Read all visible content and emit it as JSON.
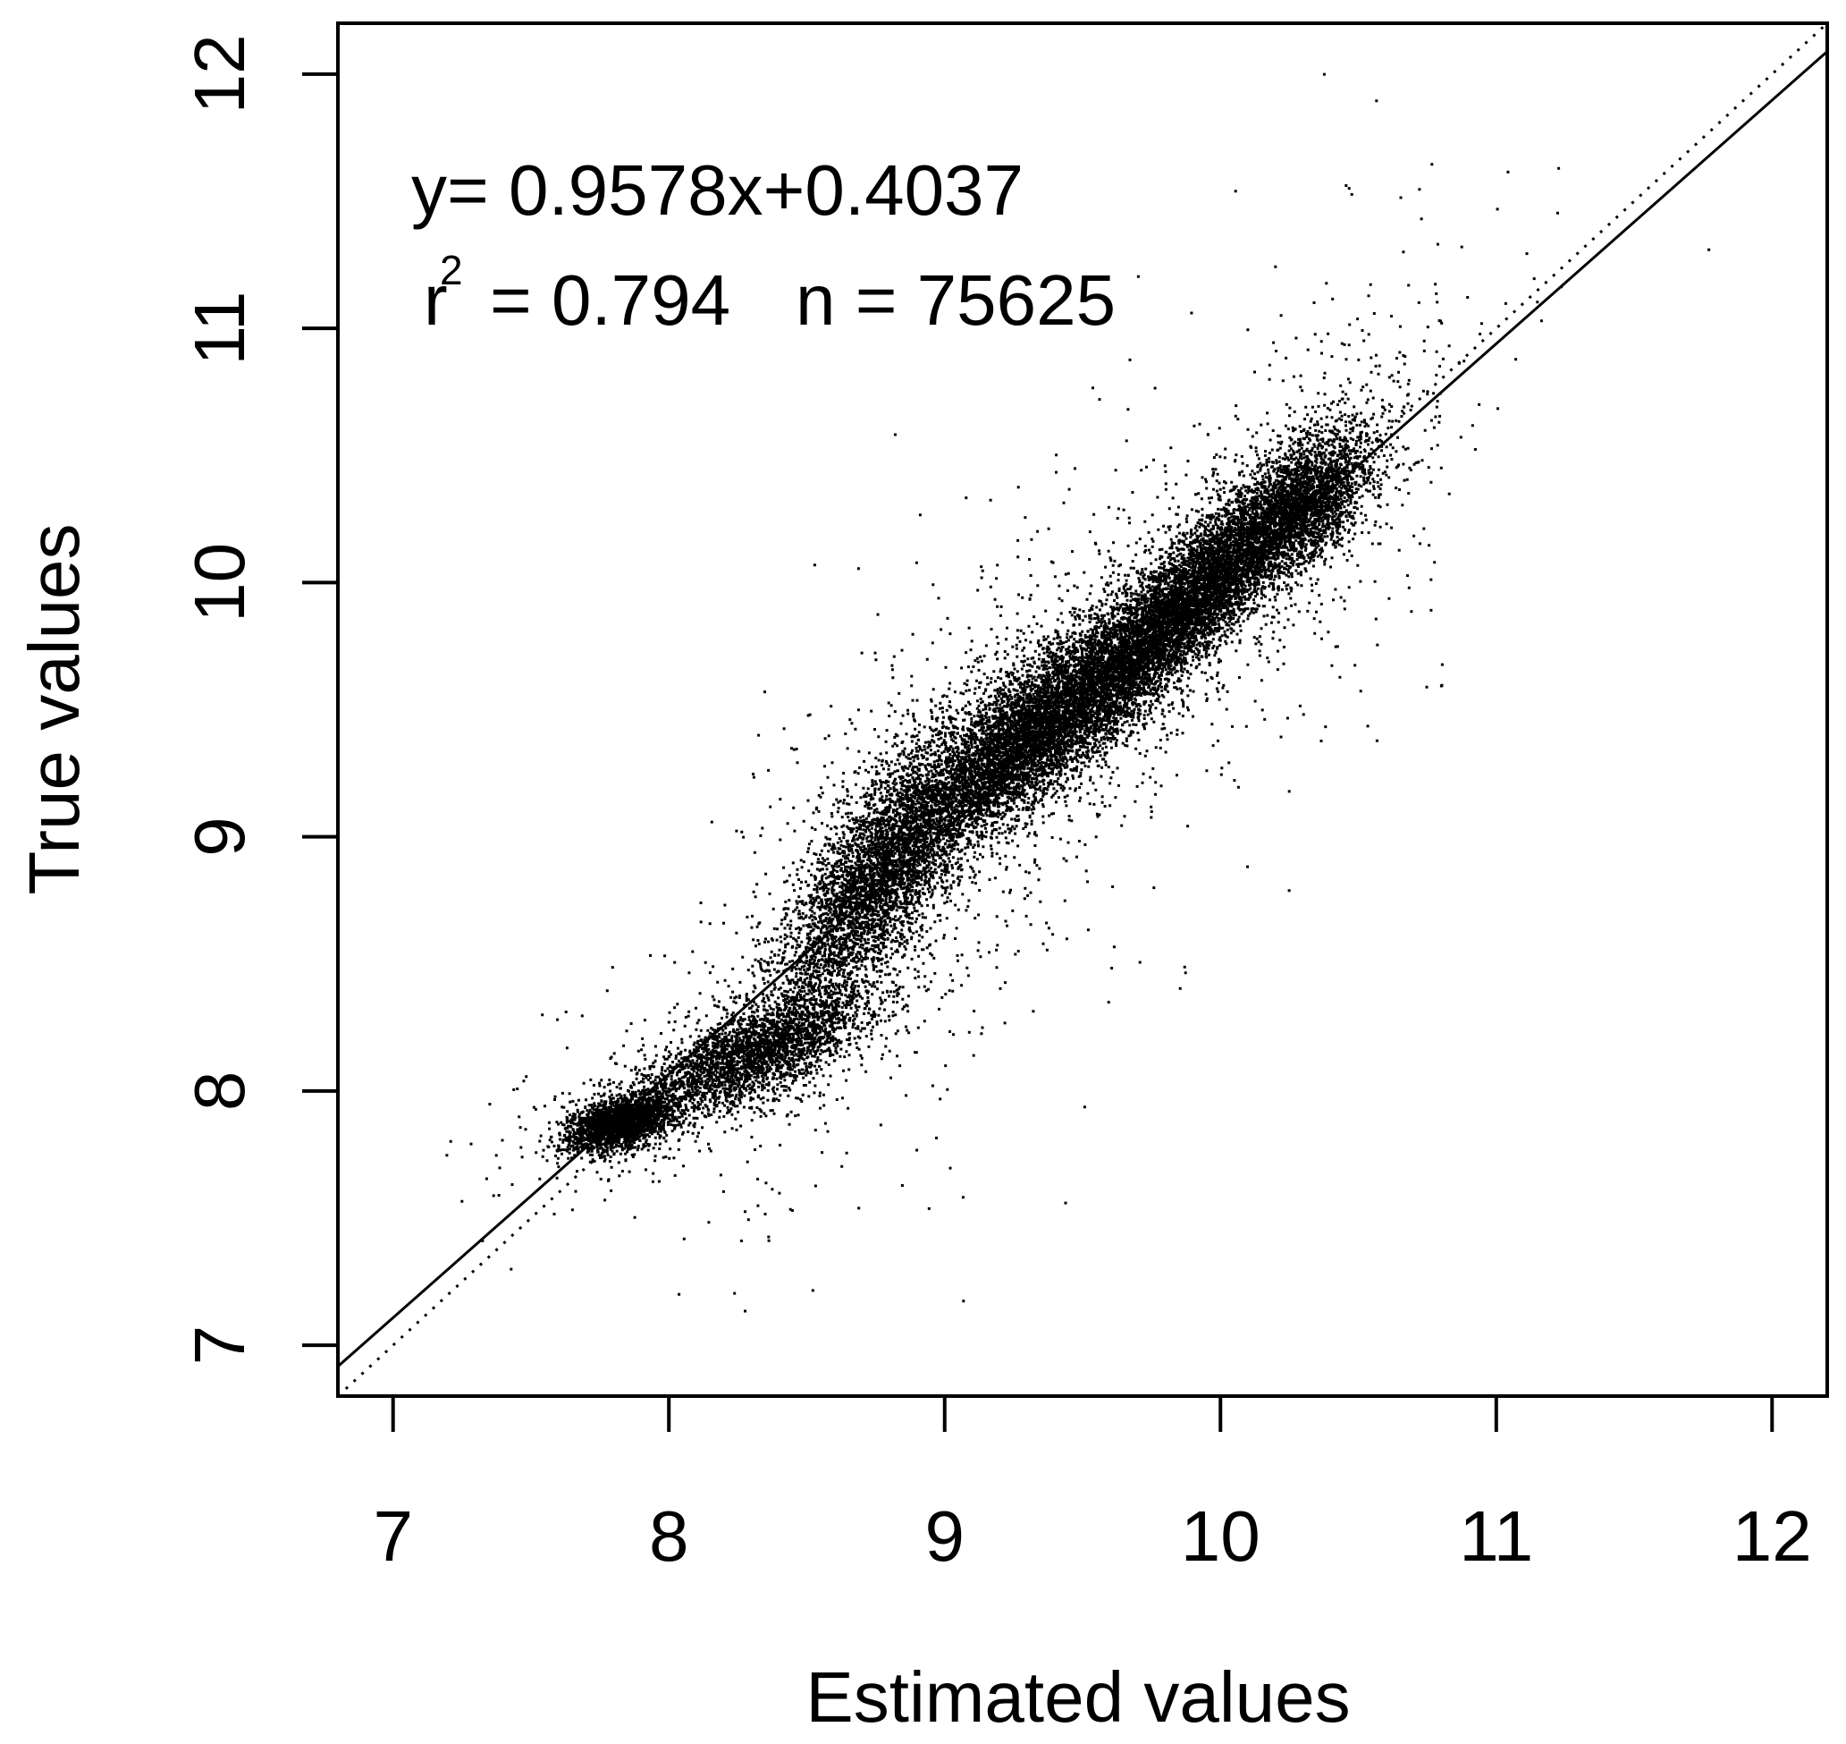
{
  "chart_data": {
    "type": "scatter",
    "title": "",
    "xlabel": "Estimated values",
    "ylabel": "True values",
    "xlim": [
      6.8,
      12.2
    ],
    "ylim": [
      6.8,
      12.2
    ],
    "x_ticks": [
      7,
      8,
      9,
      10,
      11,
      12
    ],
    "y_ticks": [
      7,
      8,
      9,
      10,
      11,
      12
    ],
    "grid": false,
    "legend": "none",
    "annotations": {
      "equation": "y= 0.9578x+0.4037",
      "r2_prefix": "r",
      "r2_exponent": "2",
      "r2_value": "= 0.794",
      "n_text": "n = 75625"
    },
    "fit_line": {
      "slope": 0.9578,
      "intercept": 0.4037,
      "style": "solid"
    },
    "identity_line": {
      "slope": 1,
      "intercept": 0,
      "style": "dotted"
    },
    "point_cloud": {
      "n": 75625,
      "clusters": [
        {
          "cx": 7.82,
          "cy": 7.88,
          "sx": 0.09,
          "sy": 0.05,
          "rho": 0.45,
          "weight": 0.1
        },
        {
          "cx": 8.3,
          "cy": 8.15,
          "sx": 0.2,
          "sy": 0.12,
          "rho": 0.7,
          "weight": 0.11
        },
        {
          "cx": 8.75,
          "cy": 8.85,
          "sx": 0.18,
          "sy": 0.28,
          "rho": 0.75,
          "weight": 0.17
        },
        {
          "cx": 9.35,
          "cy": 9.45,
          "sx": 0.26,
          "sy": 0.26,
          "rho": 0.85,
          "weight": 0.28
        },
        {
          "cx": 9.9,
          "cy": 9.95,
          "sx": 0.22,
          "sy": 0.26,
          "rho": 0.88,
          "weight": 0.25
        },
        {
          "cx": 10.3,
          "cy": 10.3,
          "sx": 0.12,
          "sy": 0.14,
          "rho": 0.6,
          "weight": 0.09
        }
      ]
    }
  }
}
